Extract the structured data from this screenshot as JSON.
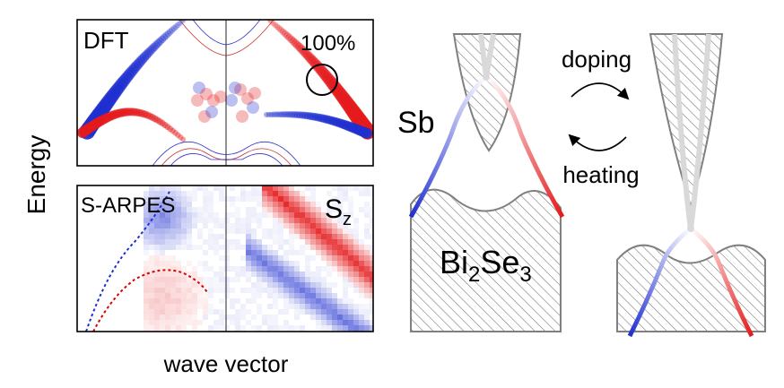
{
  "axes": {
    "ylabel": "Energy",
    "xlabel": "wave vector"
  },
  "panels": {
    "dft": {
      "label": "DFT",
      "annotation": "100%"
    },
    "arpes": {
      "label": "S-ARPES",
      "spin_symbol": "S",
      "spin_subscript": "z"
    }
  },
  "schematic": {
    "left_label": "Sb",
    "substrate": {
      "base": "Bi",
      "sub1": "2",
      "mid": "Se",
      "sub2": "3"
    },
    "process_top": "doping",
    "process_bottom": "heating"
  },
  "colors": {
    "spin_up": "#e41a1c",
    "spin_down": "#1f2fd0",
    "hatch": "#808080",
    "cone_core": "#d9d9d9"
  }
}
